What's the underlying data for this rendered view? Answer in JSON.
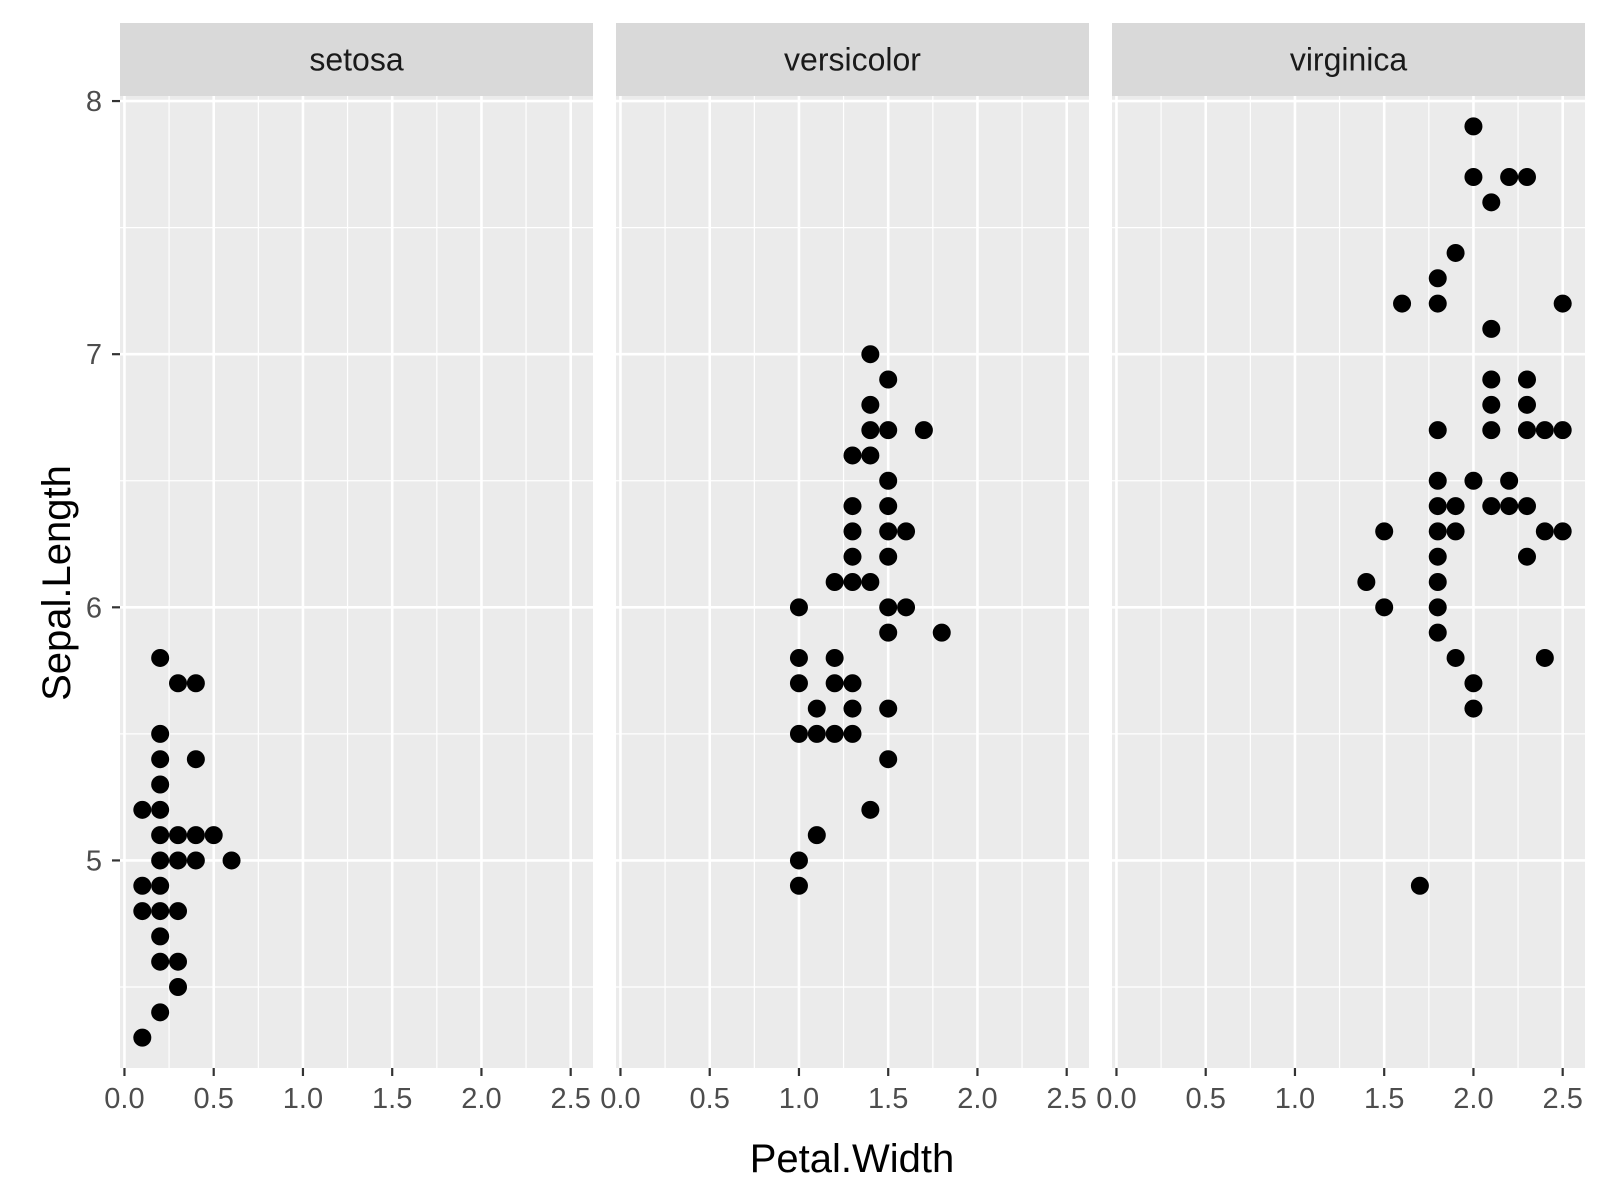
{
  "chart_data": {
    "type": "scatter",
    "xlabel": "Petal.Width",
    "ylabel": "Sepal.Length",
    "xlim": [
      -0.025,
      2.625
    ],
    "ylim": [
      4.18,
      8.02
    ],
    "x_ticks": [
      0.0,
      0.5,
      1.0,
      1.5,
      2.0,
      2.5
    ],
    "x_tick_labels": [
      "0.0",
      "0.5",
      "1.0",
      "1.5",
      "2.0",
      "2.5"
    ],
    "y_ticks": [
      5,
      6,
      7,
      8
    ],
    "y_tick_labels": [
      "5",
      "6",
      "7",
      "8"
    ],
    "grid": true,
    "point_color": "#000000",
    "panel_background": "#ebebeb",
    "strip_background": "#d9d9d9",
    "panels": [
      {
        "label": "setosa",
        "points": [
          [
            0.1,
            5.2
          ],
          [
            0.2,
            5.2
          ],
          [
            0.1,
            4.9
          ],
          [
            0.2,
            4.9
          ],
          [
            0.1,
            4.8
          ],
          [
            0.2,
            4.8
          ],
          [
            0.3,
            4.8
          ],
          [
            0.2,
            4.7
          ],
          [
            0.2,
            4.6
          ],
          [
            0.3,
            4.6
          ],
          [
            0.3,
            4.5
          ],
          [
            0.2,
            4.4
          ],
          [
            0.1,
            4.3
          ],
          [
            0.2,
            5.0
          ],
          [
            0.3,
            5.0
          ],
          [
            0.4,
            5.0
          ],
          [
            0.6,
            5.0
          ],
          [
            0.2,
            5.1
          ],
          [
            0.3,
            5.1
          ],
          [
            0.4,
            5.1
          ],
          [
            0.5,
            5.1
          ],
          [
            0.2,
            5.3
          ],
          [
            0.2,
            5.4
          ],
          [
            0.4,
            5.4
          ],
          [
            0.2,
            5.5
          ],
          [
            0.3,
            5.7
          ],
          [
            0.4,
            5.7
          ],
          [
            0.2,
            5.8
          ]
        ]
      },
      {
        "label": "versicolor",
        "points": [
          [
            1.0,
            6.0
          ],
          [
            1.0,
            5.8
          ],
          [
            1.0,
            5.7
          ],
          [
            1.0,
            5.5
          ],
          [
            1.0,
            5.0
          ],
          [
            1.0,
            4.9
          ],
          [
            1.1,
            5.6
          ],
          [
            1.1,
            5.5
          ],
          [
            1.1,
            5.1
          ],
          [
            1.2,
            6.1
          ],
          [
            1.2,
            5.8
          ],
          [
            1.2,
            5.7
          ],
          [
            1.2,
            5.5
          ],
          [
            1.3,
            6.6
          ],
          [
            1.3,
            6.4
          ],
          [
            1.3,
            6.3
          ],
          [
            1.3,
            6.2
          ],
          [
            1.3,
            6.1
          ],
          [
            1.3,
            5.7
          ],
          [
            1.3,
            5.6
          ],
          [
            1.3,
            5.5
          ],
          [
            1.4,
            7.0
          ],
          [
            1.4,
            6.8
          ],
          [
            1.4,
            6.7
          ],
          [
            1.4,
            6.6
          ],
          [
            1.4,
            6.1
          ],
          [
            1.4,
            5.2
          ],
          [
            1.5,
            6.9
          ],
          [
            1.5,
            6.7
          ],
          [
            1.5,
            6.5
          ],
          [
            1.5,
            6.4
          ],
          [
            1.5,
            6.3
          ],
          [
            1.5,
            6.2
          ],
          [
            1.5,
            6.0
          ],
          [
            1.5,
            5.9
          ],
          [
            1.5,
            5.6
          ],
          [
            1.5,
            5.4
          ],
          [
            1.6,
            6.3
          ],
          [
            1.6,
            6.0
          ],
          [
            1.7,
            6.7
          ],
          [
            1.8,
            5.9
          ]
        ]
      },
      {
        "label": "virginica",
        "points": [
          [
            1.4,
            6.1
          ],
          [
            1.5,
            6.3
          ],
          [
            1.5,
            6.0
          ],
          [
            1.6,
            7.2
          ],
          [
            1.7,
            4.9
          ],
          [
            1.8,
            7.3
          ],
          [
            1.8,
            7.2
          ],
          [
            1.8,
            6.7
          ],
          [
            1.8,
            6.5
          ],
          [
            1.8,
            6.4
          ],
          [
            1.8,
            6.3
          ],
          [
            1.8,
            6.2
          ],
          [
            1.8,
            6.1
          ],
          [
            1.8,
            6.0
          ],
          [
            1.8,
            5.9
          ],
          [
            1.9,
            7.4
          ],
          [
            1.9,
            6.4
          ],
          [
            1.9,
            6.3
          ],
          [
            1.9,
            5.8
          ],
          [
            2.0,
            7.9
          ],
          [
            2.0,
            7.7
          ],
          [
            2.0,
            6.5
          ],
          [
            2.0,
            5.7
          ],
          [
            2.0,
            5.6
          ],
          [
            2.1,
            7.6
          ],
          [
            2.1,
            7.1
          ],
          [
            2.1,
            6.9
          ],
          [
            2.1,
            6.8
          ],
          [
            2.1,
            6.7
          ],
          [
            2.1,
            6.4
          ],
          [
            2.2,
            7.7
          ],
          [
            2.2,
            6.5
          ],
          [
            2.2,
            6.4
          ],
          [
            2.3,
            7.7
          ],
          [
            2.3,
            6.9
          ],
          [
            2.3,
            6.8
          ],
          [
            2.3,
            6.7
          ],
          [
            2.3,
            6.4
          ],
          [
            2.3,
            6.2
          ],
          [
            2.4,
            6.7
          ],
          [
            2.4,
            6.3
          ],
          [
            2.4,
            5.8
          ],
          [
            2.5,
            7.2
          ],
          [
            2.5,
            6.7
          ],
          [
            2.5,
            6.3
          ]
        ]
      }
    ]
  }
}
